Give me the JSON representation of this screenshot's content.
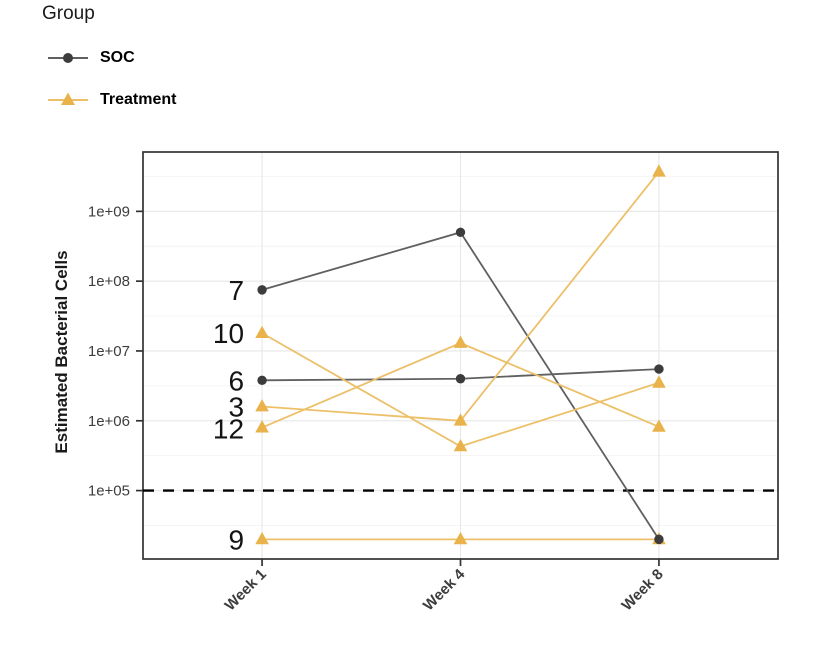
{
  "legend": {
    "title": "Group",
    "items": [
      {
        "label": "SOC",
        "marker": "circle",
        "point_color": "#3c3c3c",
        "line_color": "#606060"
      },
      {
        "label": "Treatment",
        "marker": "triangle",
        "point_color": "#e9b24a",
        "line_color": "#ecc068"
      }
    ]
  },
  "chart_data": {
    "type": "line",
    "title": "",
    "xlabel": "",
    "ylabel": "Estimated Bacterial Cells",
    "categories": [
      "Week 1",
      "Week 4",
      "Week 8"
    ],
    "y_scale": "log10",
    "ylim_log10": [
      4.02,
      9.85
    ],
    "y_ticks": [
      {
        "label": "1e+05",
        "value": 100000.0
      },
      {
        "label": "1e+06",
        "value": 1000000.0
      },
      {
        "label": "1e+07",
        "value": 10000000.0
      },
      {
        "label": "1e+08",
        "value": 100000000.0
      },
      {
        "label": "1e+09",
        "value": 1000000000.0
      }
    ],
    "grid": {
      "major": true,
      "minor": true
    },
    "legend_position": "top-left",
    "reference_line": {
      "value": 100000.0,
      "style": "dashed",
      "color": "#000000"
    },
    "series": [
      {
        "name": "7",
        "group": "SOC",
        "values": [
          75000000.0,
          500000000.0,
          20000.0
        ]
      },
      {
        "name": "6",
        "group": "SOC",
        "values": [
          3800000.0,
          4000000.0,
          5500000.0
        ]
      },
      {
        "name": "10",
        "group": "Treatment",
        "values": [
          18000000.0,
          430000.0,
          3500000.0
        ]
      },
      {
        "name": "3",
        "group": "Treatment",
        "values": [
          1600000.0,
          1000000.0,
          3700000000.0
        ]
      },
      {
        "name": "12",
        "group": "Treatment",
        "values": [
          800000.0,
          13000000.0,
          820000.0
        ]
      },
      {
        "name": "9",
        "group": "Treatment",
        "values": [
          20000.0,
          20000.0,
          20000.0
        ]
      }
    ]
  }
}
